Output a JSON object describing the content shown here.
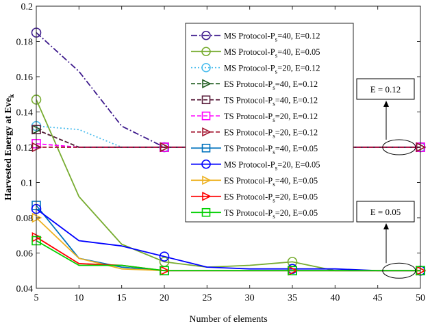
{
  "chart_data": {
    "type": "line",
    "xlabel": "Number of elements",
    "ylabel": "Harvested Energy at Eve",
    "ylabel_sub": "k",
    "xlim": [
      5,
      50
    ],
    "ylim": [
      0.04,
      0.2
    ],
    "xticks": [
      5,
      10,
      15,
      20,
      25,
      30,
      35,
      40,
      45,
      50
    ],
    "yticks": [
      0.04,
      0.06,
      0.08,
      0.1,
      0.12,
      0.14,
      0.16,
      0.18,
      0.2
    ],
    "ytick_labels": [
      "0.04",
      "0.06",
      "0.08",
      "0.1",
      "0.12",
      "0.14",
      "0.16",
      "0.18",
      "0.2"
    ],
    "legend_position": "top-right",
    "grid": false,
    "annotations": [
      {
        "text": "E = 0.12",
        "target_x": 47.5,
        "target_y": 0.12
      },
      {
        "text": "E = 0.05",
        "target_x": 47.5,
        "target_y": 0.05
      }
    ],
    "series": [
      {
        "name": "MS Protocol-P",
        "sub": "s",
        "suffix": "=40, E=0.12",
        "color": "#3d1a8c",
        "dash": "9 3 2 3",
        "marker": "circle",
        "x": [
          5,
          10,
          15,
          20,
          25,
          30,
          35,
          40,
          45,
          50
        ],
        "y": [
          0.185,
          0.163,
          0.132,
          0.12,
          0.12,
          0.12,
          0.12,
          0.12,
          0.12,
          0.12
        ],
        "marker_x": [
          5,
          20,
          35,
          50
        ]
      },
      {
        "name": "MS Protocol-P",
        "sub": "s",
        "suffix": "=40, E=0.05",
        "color": "#77ac30",
        "dash": "",
        "marker": "circle",
        "x": [
          5,
          10,
          15,
          20,
          25,
          30,
          35,
          40,
          45,
          50
        ],
        "y": [
          0.147,
          0.092,
          0.065,
          0.055,
          0.052,
          0.053,
          0.055,
          0.05,
          0.05,
          0.05
        ],
        "marker_x": [
          5,
          20,
          35,
          50
        ]
      },
      {
        "name": "MS Protocol-P",
        "sub": "s",
        "suffix": "=20, E=0.12",
        "color": "#4dbeee",
        "dash": "2 3",
        "marker": "circle",
        "x": [
          5,
          10,
          15,
          20,
          25,
          30,
          35,
          40,
          45,
          50
        ],
        "y": [
          0.132,
          0.13,
          0.12,
          0.12,
          0.12,
          0.12,
          0.12,
          0.12,
          0.12,
          0.12
        ],
        "marker_x": [
          5,
          20,
          35,
          50
        ]
      },
      {
        "name": "ES Protocol-P",
        "sub": "s",
        "suffix": "=40, E=0.12",
        "color": "#1e5a1e",
        "dash": "6 3",
        "marker": "triangle-right",
        "x": [
          5,
          10,
          15,
          20,
          25,
          30,
          35,
          40,
          45,
          50
        ],
        "y": [
          0.13,
          0.12,
          0.12,
          0.12,
          0.12,
          0.12,
          0.12,
          0.12,
          0.12,
          0.12
        ],
        "marker_x": [
          5,
          20,
          35,
          50
        ]
      },
      {
        "name": "TS Protocol-P",
        "sub": "s",
        "suffix": "=40, E=0.12",
        "color": "#5a1e3c",
        "dash": "6 3",
        "marker": "square",
        "x": [
          5,
          10,
          15,
          20,
          25,
          30,
          35,
          40,
          45,
          50
        ],
        "y": [
          0.13,
          0.12,
          0.12,
          0.12,
          0.12,
          0.12,
          0.12,
          0.12,
          0.12,
          0.12
        ],
        "marker_x": [
          5,
          20,
          35,
          50
        ]
      },
      {
        "name": "TS Protocol-P",
        "sub": "s",
        "suffix": "=20, E=0.12",
        "color": "#ff00ff",
        "dash": "6 3",
        "marker": "square",
        "x": [
          5,
          10,
          15,
          20,
          25,
          30,
          35,
          40,
          45,
          50
        ],
        "y": [
          0.122,
          0.12,
          0.12,
          0.12,
          0.12,
          0.12,
          0.12,
          0.12,
          0.12,
          0.12
        ],
        "marker_x": [
          5,
          20,
          35,
          50
        ]
      },
      {
        "name": "ES Protocol-P",
        "sub": "s",
        "suffix": "=20, E=0.12",
        "color": "#a2142f",
        "dash": "6 3",
        "marker": "triangle-right",
        "x": [
          5,
          10,
          15,
          20,
          25,
          30,
          35,
          40,
          45,
          50
        ],
        "y": [
          0.12,
          0.12,
          0.12,
          0.12,
          0.12,
          0.12,
          0.12,
          0.12,
          0.12,
          0.12
        ],
        "marker_x": [
          5,
          20,
          35,
          50
        ]
      },
      {
        "name": "TS Protocol-P",
        "sub": "s",
        "suffix": "=40, E=0.05",
        "color": "#0072bd",
        "dash": "",
        "marker": "square",
        "x": [
          5,
          10,
          15,
          20,
          25,
          30,
          35,
          40,
          45,
          50
        ],
        "y": [
          0.087,
          0.057,
          0.052,
          0.05,
          0.05,
          0.05,
          0.05,
          0.05,
          0.05,
          0.05
        ],
        "marker_x": [
          5,
          20,
          35,
          50
        ]
      },
      {
        "name": "MS Protocol-P",
        "sub": "s",
        "suffix": "=20, E=0.05",
        "color": "#0000ff",
        "dash": "",
        "marker": "circle",
        "x": [
          5,
          10,
          15,
          20,
          25,
          30,
          35,
          40,
          45,
          50
        ],
        "y": [
          0.085,
          0.067,
          0.064,
          0.058,
          0.052,
          0.051,
          0.051,
          0.051,
          0.05,
          0.05
        ],
        "marker_x": [
          5,
          20,
          35,
          50
        ]
      },
      {
        "name": "ES Protocol-P",
        "sub": "s",
        "suffix": "=40, E=0.05",
        "color": "#edb120",
        "dash": "",
        "marker": "triangle-right",
        "x": [
          5,
          10,
          15,
          20,
          25,
          30,
          35,
          40,
          45,
          50
        ],
        "y": [
          0.08,
          0.057,
          0.051,
          0.05,
          0.05,
          0.05,
          0.05,
          0.05,
          0.05,
          0.05
        ],
        "marker_x": [
          5,
          20,
          35,
          50
        ]
      },
      {
        "name": "ES Protocol-P",
        "sub": "s",
        "suffix": "=20, E=0.05",
        "color": "#ff0000",
        "dash": "",
        "marker": "triangle-right",
        "x": [
          5,
          10,
          15,
          20,
          25,
          30,
          35,
          40,
          45,
          50
        ],
        "y": [
          0.069,
          0.054,
          0.053,
          0.05,
          0.05,
          0.05,
          0.05,
          0.05,
          0.05,
          0.05
        ],
        "marker_x": [
          5,
          20,
          35,
          50
        ]
      },
      {
        "name": "TS Protocol-P",
        "sub": "s",
        "suffix": "=20, E=0.05",
        "color": "#00d000",
        "dash": "",
        "marker": "square",
        "x": [
          5,
          10,
          15,
          20,
          25,
          30,
          35,
          40,
          45,
          50
        ],
        "y": [
          0.067,
          0.053,
          0.053,
          0.05,
          0.05,
          0.05,
          0.05,
          0.05,
          0.05,
          0.05
        ],
        "marker_x": [
          5,
          20,
          35,
          50
        ]
      }
    ]
  }
}
